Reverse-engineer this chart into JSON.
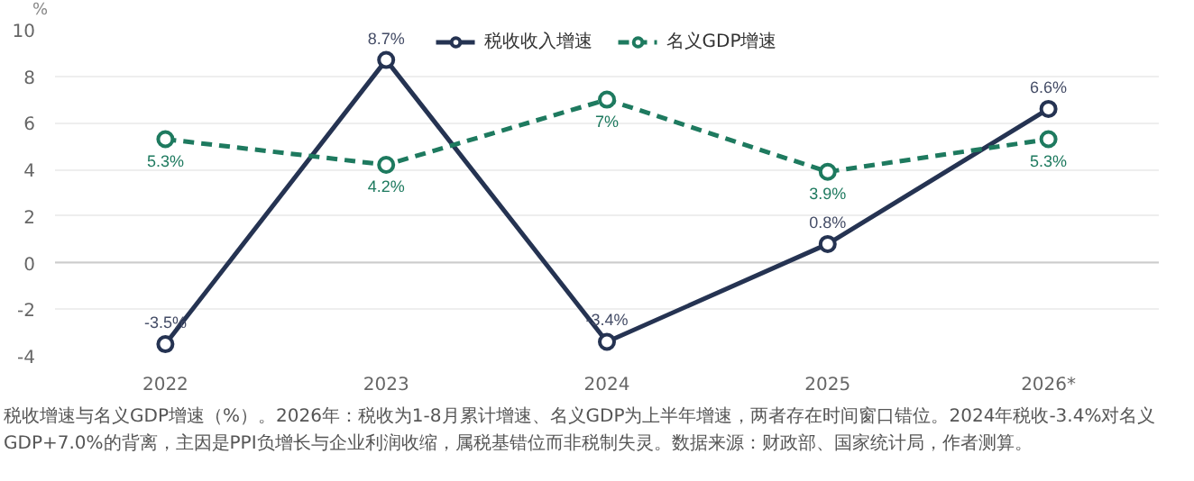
{
  "chart_data": {
    "type": "line",
    "ylabel": "%",
    "categories": [
      "2022",
      "2023",
      "2024",
      "2025",
      "2026*"
    ],
    "ylim": [
      -4,
      10
    ],
    "yticks": [
      -4,
      -2,
      0,
      2,
      4,
      6,
      8,
      10
    ],
    "grid": "y",
    "legend": "top",
    "marker": "circle",
    "data_labels": true,
    "series": [
      {
        "name": "税收收入增速",
        "color": "#253352",
        "line_style": "solid",
        "values": [
          -3.5,
          8.7,
          -3.4,
          0.8,
          6.6
        ],
        "value_labels": [
          "-3.5%",
          "8.7%",
          "-3.4%",
          "0.8%",
          "6.6%"
        ]
      },
      {
        "name": "名义GDP增速",
        "color": "#1e7a5f",
        "line_style": "dashed",
        "values": [
          5.3,
          4.2,
          7,
          3.9,
          5.3
        ],
        "value_labels": [
          "5.3%",
          "4.2%",
          "7%",
          "3.9%",
          "5.3%"
        ]
      }
    ],
    "annotations": [
      "税收增速与名义GDP增速（%）。2026年：税收为1-8月累计增速、名义GDP为上半年增速，两者存在时间窗口错位。2024年税收-3.4%对名义GDP+7.0%的背离，主因是PPI负增长与企业利润收缩，属税基错位而非税制失灵。数据来源：财政部、国家统计局，作者测算。"
    ]
  }
}
